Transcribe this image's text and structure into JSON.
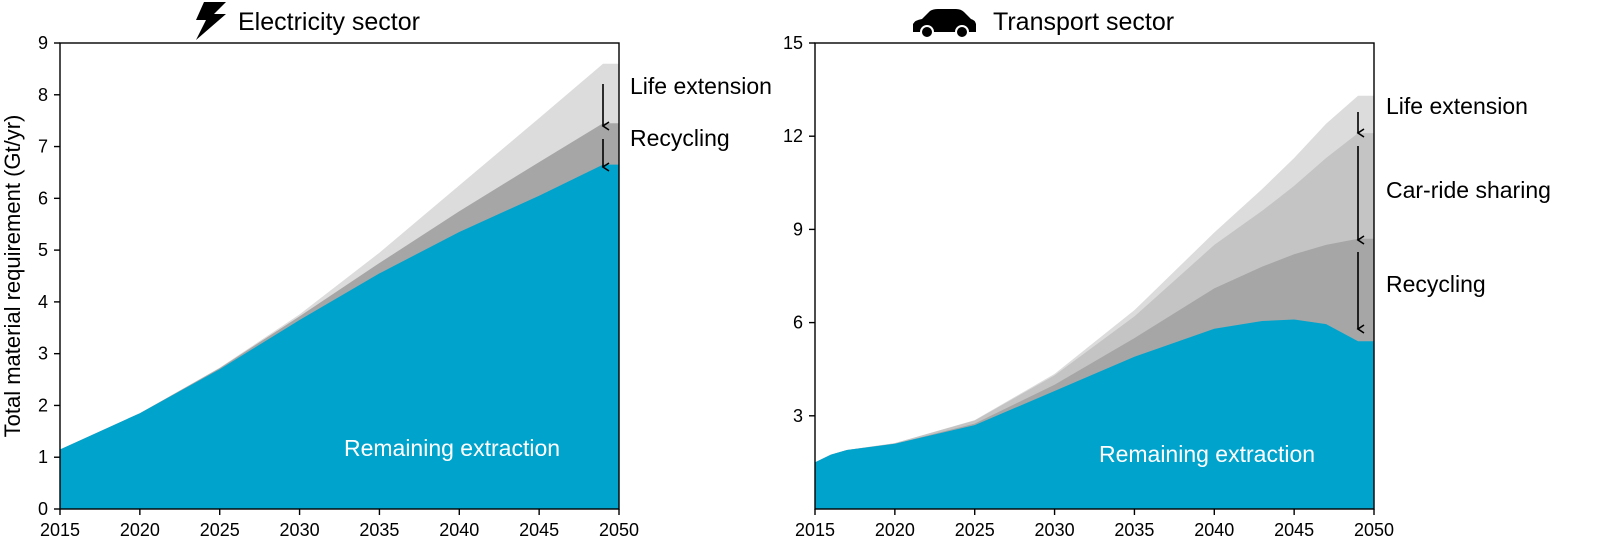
{
  "colors": {
    "remaining": "#00a3cc",
    "recycling": "#a6a6a6",
    "car_sharing": "#c4c4c4",
    "life_extension": "#dcdcdc"
  },
  "chart_data": [
    {
      "type": "area",
      "title": "Electricity sector",
      "title_icon": "lightning-bolt-icon",
      "xlabel": "",
      "ylabel": "Total material requirement (Gt/yr)",
      "xlim": [
        2015,
        2050
      ],
      "ylim": [
        0,
        9
      ],
      "x_ticks": [
        "2015",
        "2020",
        "2025",
        "2030",
        "2035",
        "2040",
        "2045",
        "2050"
      ],
      "y_ticks": [
        "0",
        "1",
        "2",
        "3",
        "4",
        "5",
        "6",
        "7",
        "8",
        "9"
      ],
      "x": [
        2015,
        2020,
        2025,
        2030,
        2035,
        2040,
        2045,
        2049
      ],
      "series": [
        {
          "name": "Remaining extraction",
          "color_key": "remaining",
          "values": [
            1.15,
            1.85,
            2.7,
            3.65,
            4.55,
            5.35,
            6.05,
            6.65
          ]
        },
        {
          "name": "Recycling",
          "color_key": "recycling",
          "values": [
            1.15,
            1.85,
            2.72,
            3.72,
            4.75,
            5.75,
            6.7,
            7.45
          ]
        },
        {
          "name": "Life extension",
          "color_key": "life_extension",
          "values": [
            1.15,
            1.85,
            2.73,
            3.76,
            4.95,
            6.25,
            7.55,
            8.6
          ]
        }
      ],
      "annotations": {
        "remaining": "Remaining extraction",
        "life_extension": "Life extension",
        "recycling": "Recycling"
      }
    },
    {
      "type": "area",
      "title": "Transport sector",
      "title_icon": "car-icon",
      "xlabel": "",
      "ylabel": "",
      "xlim": [
        2015,
        2050
      ],
      "ylim": [
        0,
        15
      ],
      "x_ticks": [
        "2015",
        "2020",
        "2025",
        "2030",
        "2035",
        "2040",
        "2045",
        "2050"
      ],
      "y_ticks": [
        "3",
        "6",
        "9",
        "12",
        "15"
      ],
      "x": [
        2015,
        2016,
        2017,
        2020,
        2025,
        2030,
        2035,
        2040,
        2043,
        2045,
        2047,
        2049
      ],
      "series": [
        {
          "name": "Remaining extraction",
          "color_key": "remaining",
          "values": [
            1.5,
            1.75,
            1.9,
            2.1,
            2.7,
            3.8,
            4.9,
            5.8,
            6.05,
            6.1,
            5.95,
            5.4
          ]
        },
        {
          "name": "Recycling",
          "color_key": "recycling",
          "values": [
            1.5,
            1.75,
            1.9,
            2.1,
            2.75,
            4.0,
            5.5,
            7.1,
            7.8,
            8.2,
            8.5,
            8.7
          ]
        },
        {
          "name": "Car-ride sharing",
          "color_key": "car_sharing",
          "values": [
            1.5,
            1.75,
            1.9,
            2.12,
            2.85,
            4.3,
            6.2,
            8.5,
            9.6,
            10.4,
            11.3,
            12.1
          ]
        },
        {
          "name": "Life extension",
          "color_key": "life_extension",
          "values": [
            1.5,
            1.75,
            1.9,
            2.12,
            2.86,
            4.35,
            6.4,
            8.9,
            10.3,
            11.3,
            12.4,
            13.3
          ]
        }
      ],
      "annotations": {
        "remaining": "Remaining extraction",
        "life_extension": "Life extension",
        "car_sharing": "Car-ride sharing",
        "recycling": "Recycling"
      }
    }
  ]
}
